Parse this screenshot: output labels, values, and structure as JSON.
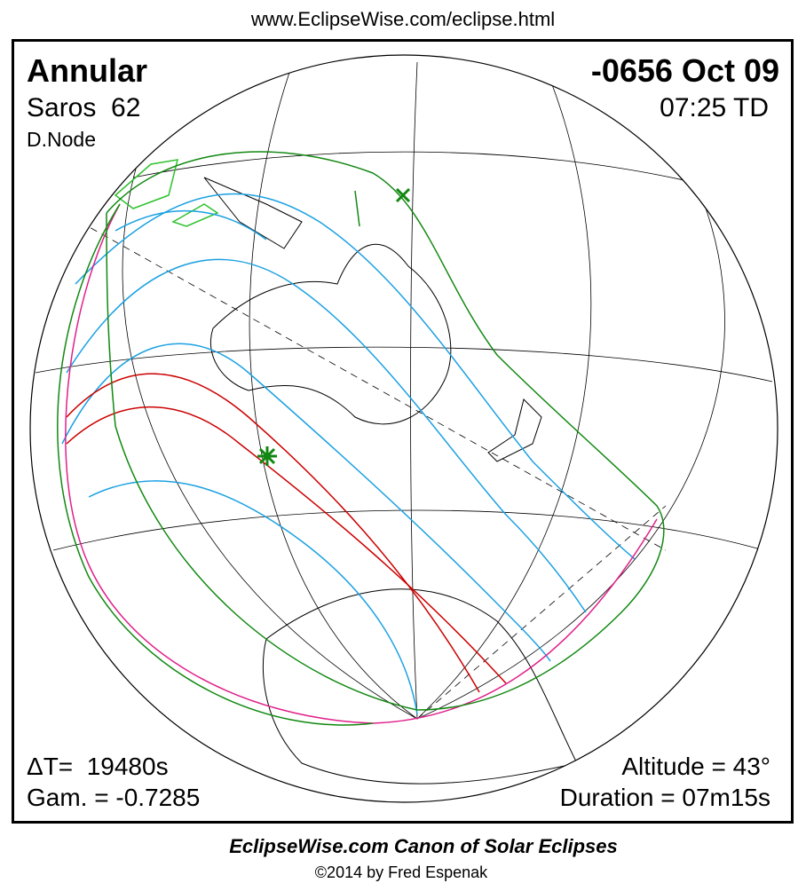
{
  "header": {
    "url": "www.EclipseWise.com/eclipse.html"
  },
  "map": {
    "eclipse_type": "Annular",
    "date": "-0656 Oct 09",
    "saros": "Saros  62",
    "time": "07:25 TD",
    "node": "D.Node",
    "delta_t": "ΔT=  19480s",
    "gamma": "Gam. = -0.7285",
    "altitude": "Altitude = 43°",
    "duration": "Duration = 07m15s"
  },
  "footer": {
    "title": "EclipseWise.com Canon of Solar Eclipses",
    "credit": "©2014 by Fred Espenak"
  }
}
